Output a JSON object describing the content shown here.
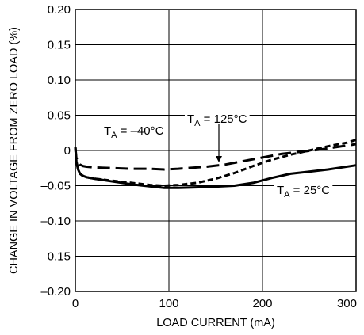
{
  "chart_data": {
    "type": "line",
    "xlabel": "LOAD CURRENT (mA)",
    "ylabel": "CHANGE IN VOLTAGE FROM ZERO LOAD (%)",
    "xlim": [
      0,
      300
    ],
    "ylim": [
      -0.2,
      0.2
    ],
    "x_ticks": [
      0,
      100,
      200,
      300
    ],
    "y_ticks": [
      0.2,
      0.15,
      0.1,
      0.05,
      0,
      -0.05,
      -0.1,
      -0.15,
      -0.2
    ],
    "x_tick_labels": [
      "0",
      "100",
      "200",
      "300"
    ],
    "y_tick_labels": [
      "0.20",
      "0.15",
      "0.10",
      "0.05",
      "0",
      "–0.05",
      "–0.10",
      "–0.15",
      "–0.20"
    ],
    "grid": true,
    "series": [
      {
        "name": "TA = 25°C",
        "label_main": "T",
        "label_sub": "A",
        "label_rest": " = 25°C",
        "style": "solid",
        "x": [
          0,
          1,
          3,
          5,
          8,
          12,
          20,
          40,
          60,
          80,
          95,
          110,
          140,
          170,
          190,
          210,
          230,
          250,
          270,
          300
        ],
        "y": [
          0.005,
          -0.015,
          -0.027,
          -0.033,
          -0.036,
          -0.038,
          -0.04,
          -0.044,
          -0.048,
          -0.051,
          -0.053,
          -0.053,
          -0.052,
          -0.05,
          -0.046,
          -0.039,
          -0.033,
          -0.03,
          -0.027,
          -0.021
        ]
      },
      {
        "name": "TA = –40°C",
        "label_main": "T",
        "label_sub": "A",
        "label_rest": " = –40°C",
        "style": "longdash",
        "x": [
          0,
          1,
          3,
          5,
          8,
          12,
          20,
          40,
          60,
          80,
          95,
          110,
          140,
          160,
          180,
          200,
          220,
          240,
          260,
          280,
          300
        ],
        "y": [
          0.005,
          -0.01,
          -0.017,
          -0.02,
          -0.022,
          -0.023,
          -0.024,
          -0.025,
          -0.026,
          -0.026,
          -0.027,
          -0.026,
          -0.023,
          -0.02,
          -0.015,
          -0.01,
          -0.005,
          -0.002,
          0.001,
          0.005,
          0.009
        ]
      },
      {
        "name": "TA = 125°C",
        "label_main": "T",
        "label_sub": "A",
        "label_rest": " = 125°C",
        "style": "shortdash",
        "x": [
          0,
          1,
          3,
          5,
          8,
          12,
          20,
          40,
          60,
          80,
          95,
          110,
          130,
          150,
          170,
          190,
          210,
          230,
          250,
          270,
          290,
          300
        ],
        "y": [
          0.005,
          -0.015,
          -0.027,
          -0.033,
          -0.036,
          -0.038,
          -0.04,
          -0.043,
          -0.046,
          -0.049,
          -0.05,
          -0.049,
          -0.046,
          -0.04,
          -0.032,
          -0.022,
          -0.013,
          -0.006,
          0.0,
          0.006,
          0.011,
          0.015
        ]
      }
    ]
  }
}
